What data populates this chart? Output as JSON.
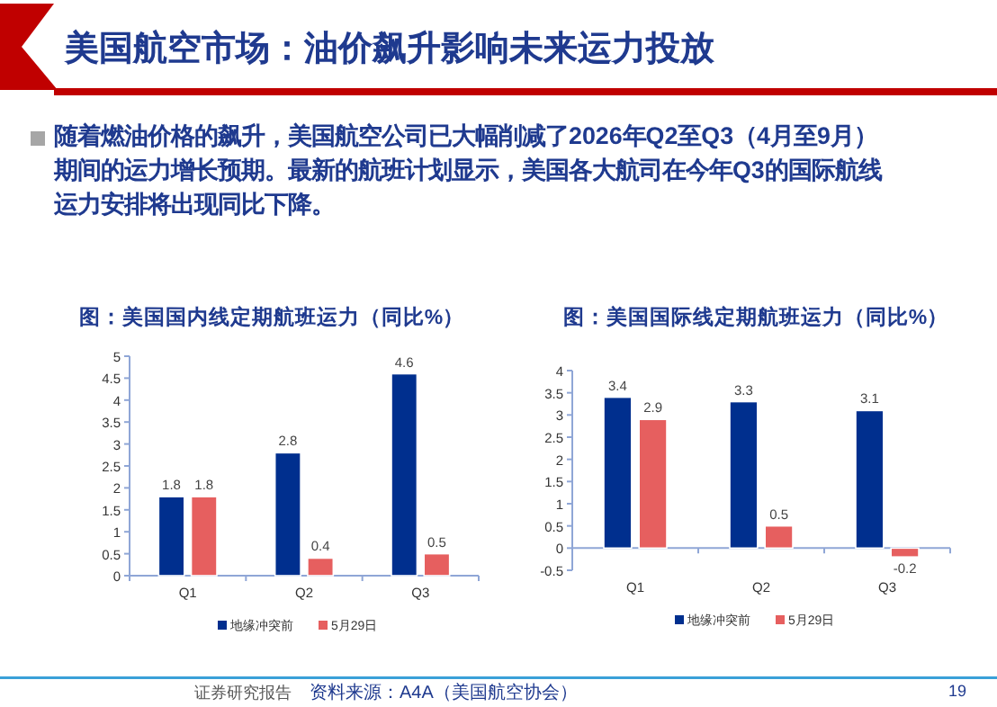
{
  "chart_data": [
    {
      "type": "bar",
      "title": "图：美国国内线定期航班运力（同比%）",
      "categories": [
        "Q1",
        "Q2",
        "Q3"
      ],
      "series": [
        {
          "name": "地缘冲突前",
          "color": "#002f8e",
          "values": [
            1.8,
            2.8,
            4.6
          ]
        },
        {
          "name": "5月29日",
          "color": "#e65f5f",
          "values": [
            1.8,
            0.4,
            0.5
          ]
        }
      ],
      "ylim": [
        0,
        5
      ],
      "yticks": [
        0,
        0.5,
        1,
        1.5,
        2,
        2.5,
        3,
        3.5,
        4,
        4.5,
        5
      ],
      "data_labels": true,
      "legend": "bottom",
      "annotations": [
        "美国航空市场：油价飙升影响未来运力投放",
        "随着燃油价格的飙升，美国航空公司已大幅削减了2026年Q2至Q3（4月至9月）期间的运力增长预期。最新的航班计划显示，美国各大航司在今年Q3的国际航线运力安排将出现同比下降。",
        "证券研究报告",
        "资料来源：A4A（美国航空协会）",
        "19"
      ]
    },
    {
      "type": "bar",
      "title": "图：美国国际线定期航班运力（同比%）",
      "categories": [
        "Q1",
        "Q2",
        "Q3"
      ],
      "series": [
        {
          "name": "地缘冲突前",
          "color": "#002f8e",
          "values": [
            3.4,
            3.3,
            3.1
          ]
        },
        {
          "name": "5月29日",
          "color": "#e65f5f",
          "values": [
            2.9,
            0.5,
            -0.2
          ]
        }
      ],
      "ylim": [
        -0.5,
        4
      ],
      "yticks": [
        -0.5,
        0,
        0.5,
        1,
        1.5,
        2,
        2.5,
        3,
        3.5,
        4
      ],
      "data_labels": true,
      "legend": "bottom"
    }
  ]
}
